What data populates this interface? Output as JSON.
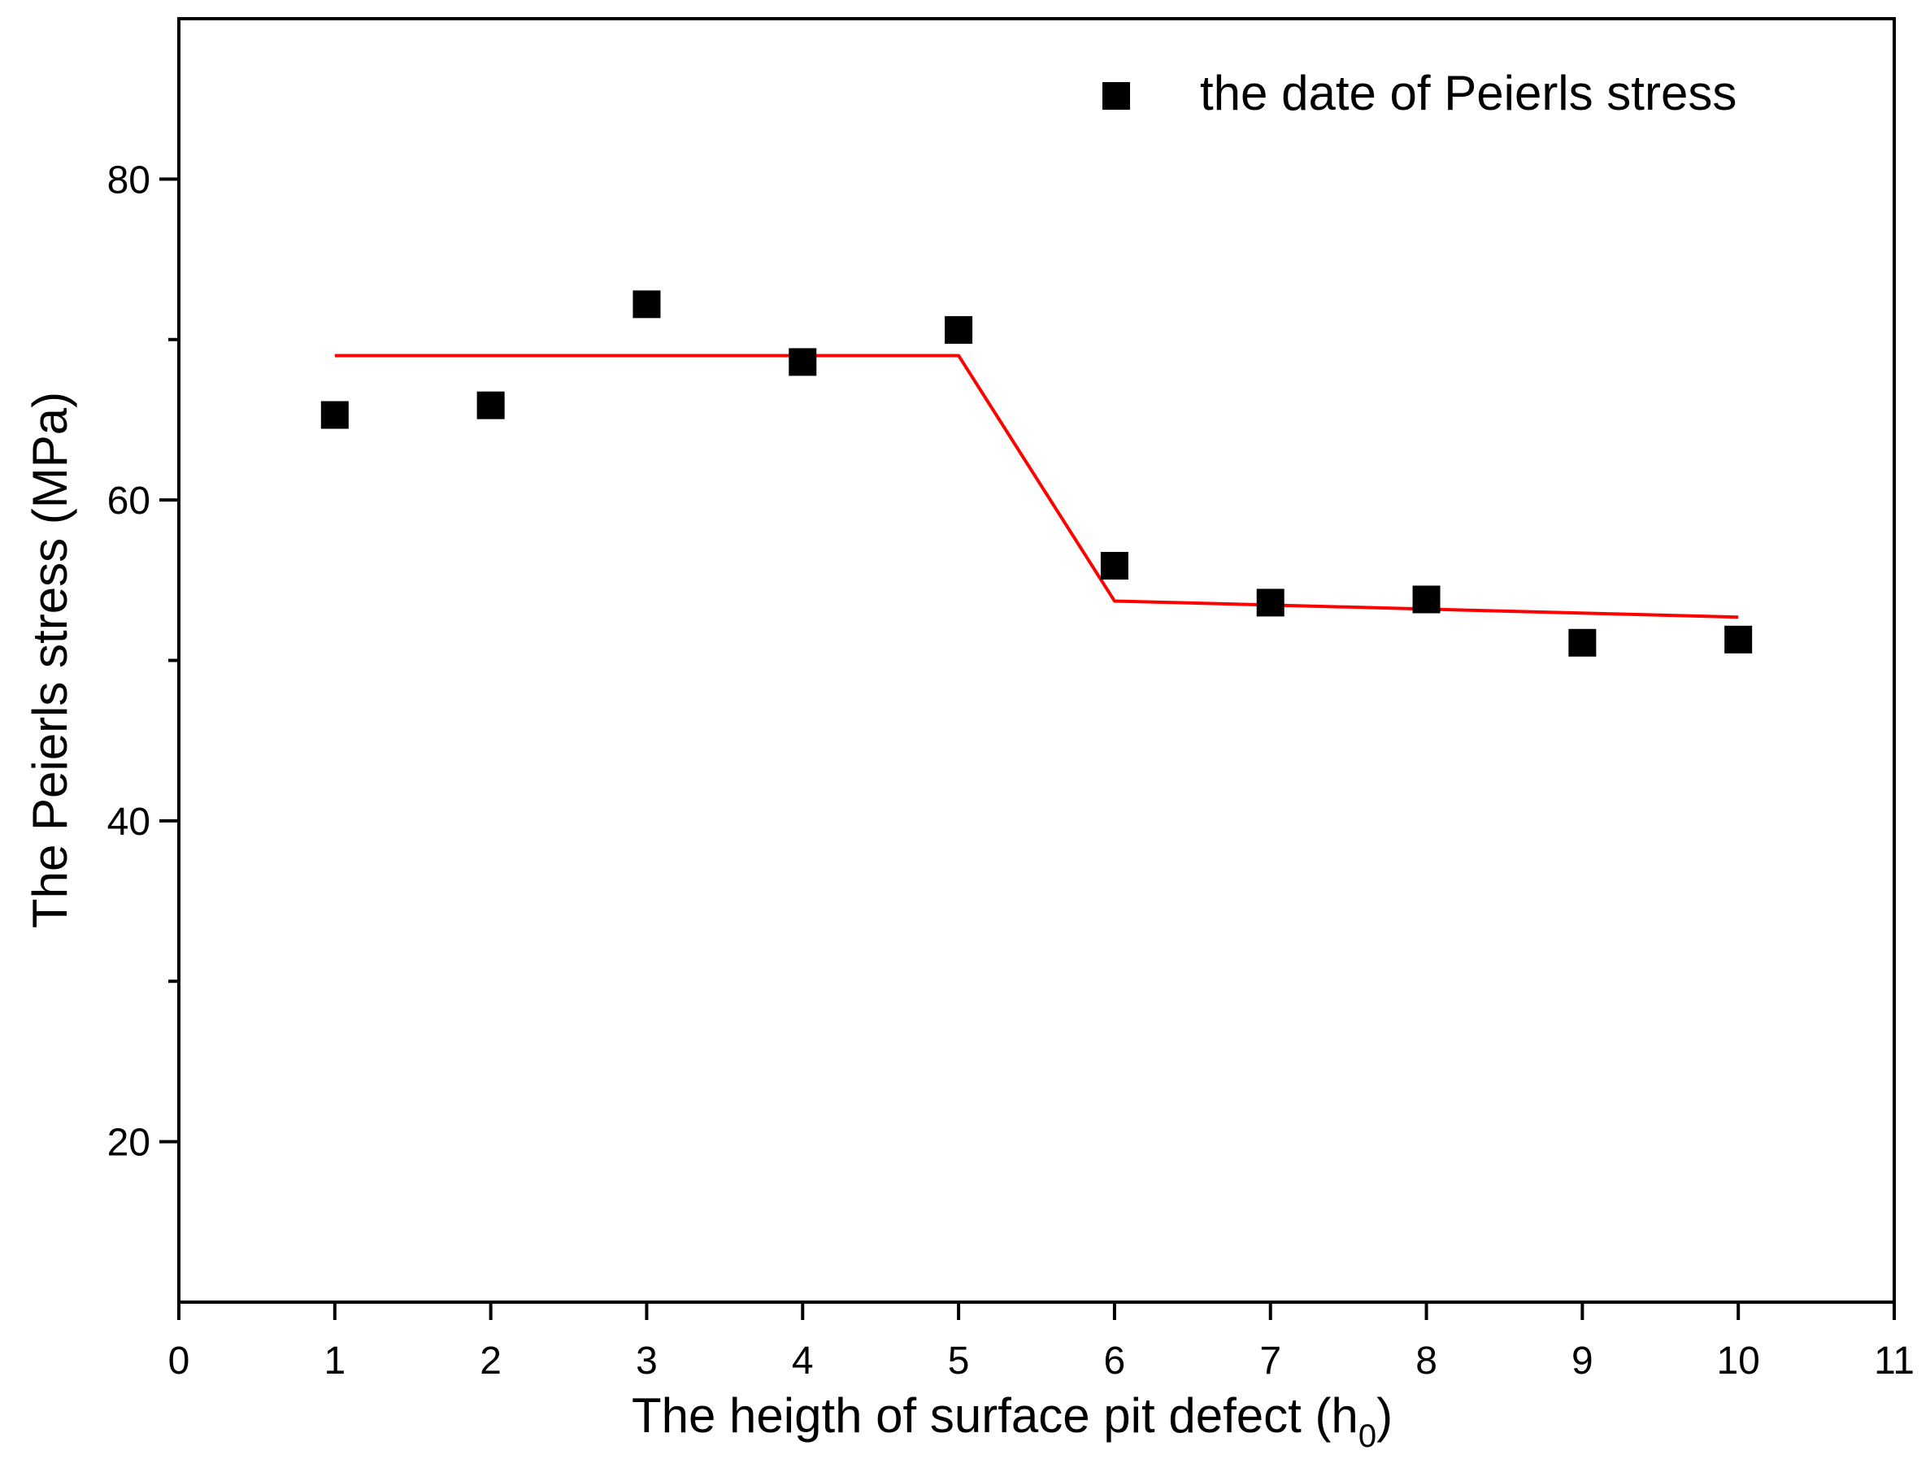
{
  "chart_data": {
    "type": "scatter",
    "xlabel": "The heigth of surface pit defect (h",
    "xlabel_subscript": "0",
    "xlabel_close": ")",
    "ylabel": "The Peierls stress (MPa)",
    "xlim": [
      0,
      11
    ],
    "ylim": [
      10,
      90
    ],
    "x_ticks": [
      0,
      1,
      2,
      3,
      4,
      5,
      6,
      7,
      8,
      9,
      10,
      11
    ],
    "y_ticks": [
      20,
      40,
      60,
      80
    ],
    "y_minor_ticks": [
      30,
      50,
      70
    ],
    "grid": false,
    "legend_position": "top-right",
    "series": [
      {
        "name": "the date of Peierls stress",
        "kind": "scatter",
        "marker": "square",
        "color": "#000000",
        "x": [
          1,
          2,
          3,
          4,
          5,
          6,
          7,
          8,
          9,
          10
        ],
        "y": [
          65.3,
          65.9,
          72.2,
          68.6,
          70.6,
          55.9,
          53.6,
          53.8,
          51.1,
          51.3
        ]
      },
      {
        "kind": "line",
        "color": "#ff0000",
        "x": [
          1,
          5,
          6,
          10
        ],
        "y": [
          69.0,
          69.0,
          53.7,
          52.7
        ]
      }
    ]
  }
}
